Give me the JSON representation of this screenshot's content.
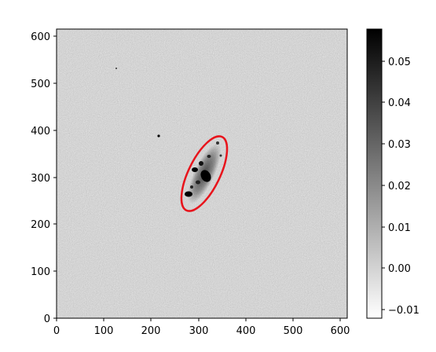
{
  "image": {
    "description_type": "astronomical-image",
    "x_ticks": [
      "0",
      "100",
      "200",
      "300",
      "400",
      "500",
      "600"
    ],
    "y_ticks": [
      "0",
      "100",
      "200",
      "300",
      "400",
      "500",
      "600"
    ],
    "x_range": [
      0,
      618
    ],
    "y_range": [
      0,
      618
    ],
    "colormap": "gray_r",
    "ellipse": {
      "center": [
        313,
        311
      ],
      "semi_major": 88,
      "semi_minor": 32,
      "angle_deg": 65,
      "color": "#e8141c"
    },
    "colorbar": {
      "ticks": [
        "0.05",
        "0.04",
        "0.03",
        "0.02",
        "0.01",
        "0.00",
        "−0.01"
      ],
      "tick_values": [
        0.05,
        0.04,
        0.03,
        0.02,
        0.01,
        0.0,
        -0.01
      ],
      "min": -0.0125,
      "max": 0.058
    }
  }
}
